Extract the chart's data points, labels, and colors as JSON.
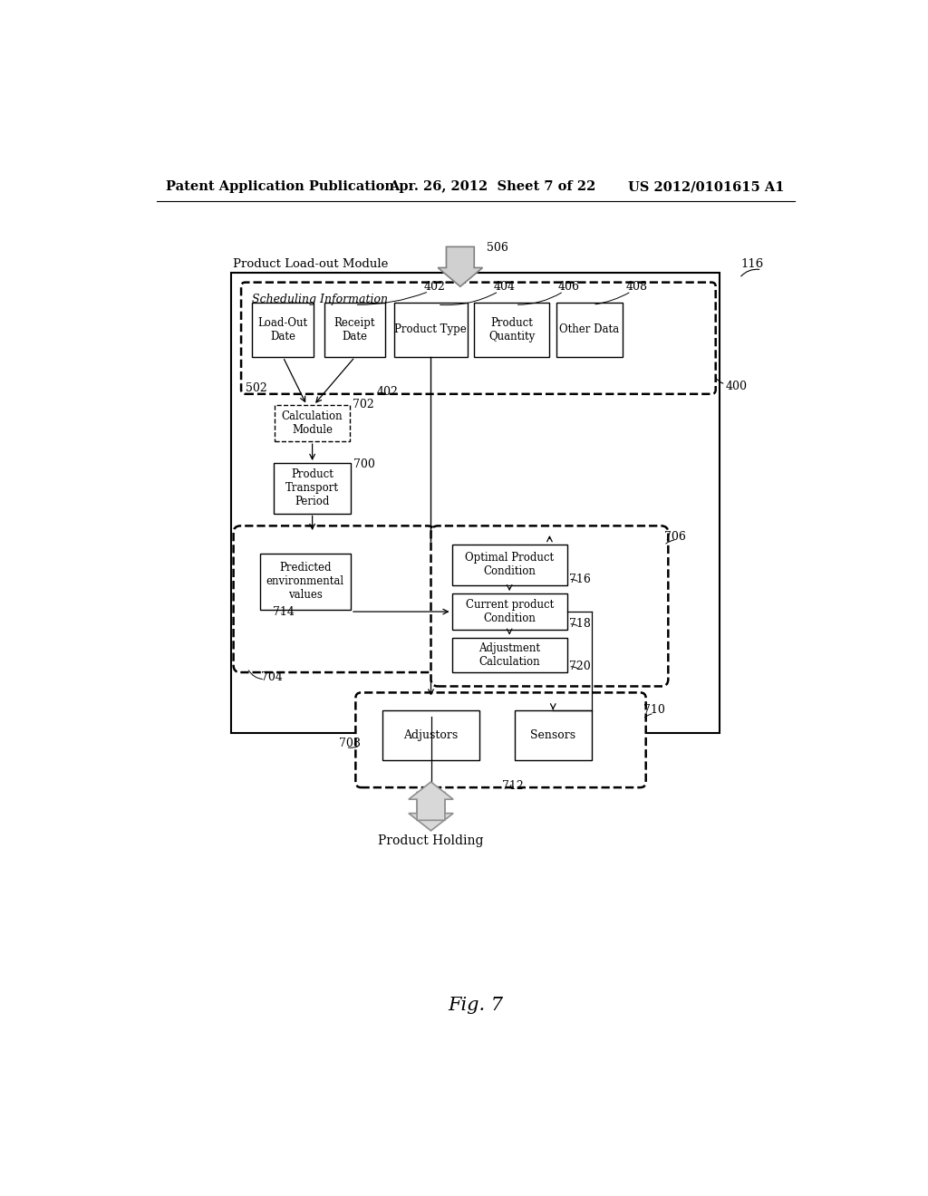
{
  "bg_color": "#ffffff",
  "header_left": "Patent Application Publication",
  "header_mid": "Apr. 26, 2012  Sheet 7 of 22",
  "header_right": "US 2012/0101615 A1",
  "fig_label": "Fig. 7",
  "outer_box_label": "Product Load-out Module",
  "outer_box_ref": "116",
  "sched_box_label": "Scheduling Information",
  "sched_box_ref": "400",
  "boxes_row1": [
    "Load-Out\nDate",
    "Receipt\nDate",
    "Product Type",
    "Product\nQuantity",
    "Other Data"
  ],
  "ref_402": "402",
  "ref_404": "404",
  "ref_406": "406",
  "ref_408": "408",
  "ref_502": "502",
  "ref_506": "506",
  "calc_module_label": "Calculation\nModule",
  "ref_702": "702",
  "transport_label": "Product\nTransport\nPeriod",
  "ref_700": "700",
  "env_label": "Predicted\nenvironmental\nvalues",
  "ref_714": "714",
  "ref_704": "704",
  "optimal_label": "Optimal Product\nCondition",
  "ref_716": "716",
  "current_label": "Current product\nCondition",
  "ref_718": "718",
  "adjustment_label": "Adjustment\nCalculation",
  "ref_720": "720",
  "ref_706": "706",
  "adjustors_label": "Adjustors",
  "sensors_label": "Sensors",
  "ref_708": "708",
  "ref_710": "710",
  "ref_712": "712",
  "product_holding": "Product Holding"
}
